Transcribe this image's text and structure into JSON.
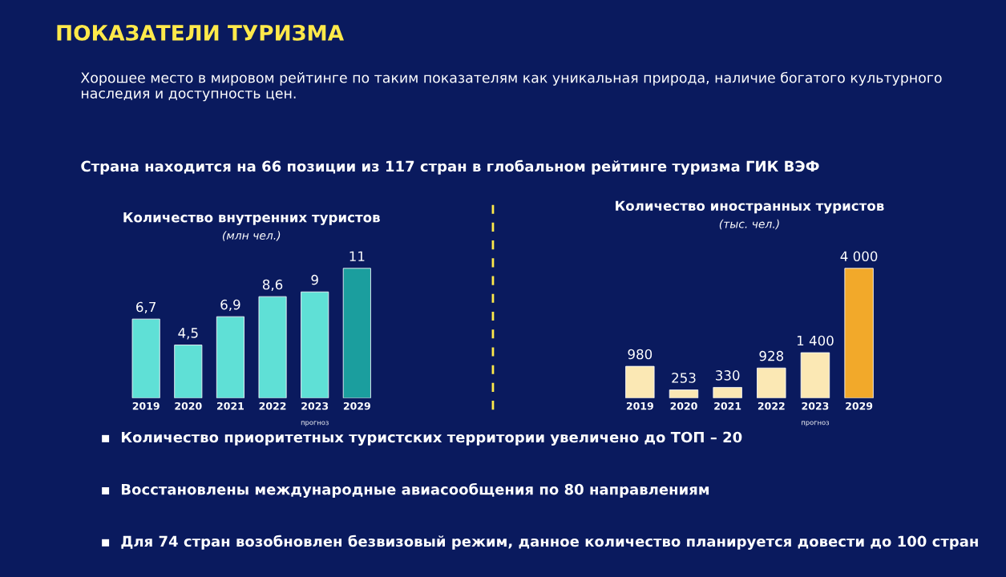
{
  "chart_data": [
    {
      "type": "bar",
      "title": "Количество внутренних туристов",
      "subtitle": "(млн чел.)",
      "categories": [
        "2019",
        "2020",
        "2021",
        "2022",
        "2023",
        "2029"
      ],
      "values": [
        6.7,
        4.5,
        6.9,
        8.6,
        9,
        11
      ],
      "colors": [
        "#5fe0d6",
        "#5fe0d6",
        "#5fe0d6",
        "#5fe0d6",
        "#5fe0d6",
        "#1b9e9e"
      ],
      "value_labels": [
        "6,7",
        "4,5",
        "6,9",
        "8,6",
        "9",
        "11"
      ],
      "annotations": [
        "ПОКАЗАТЕЛИ ТУРИЗМА",
        "Хорошее место в мировом рейтинге по таким показателям как уникальная природа, наличие богатого культурного наследия и доступность цен.",
        "Страна находится на 66 позиции из 117 стран в глобальном рейтинге туризма ГИК ВЭФ",
        "▪  Количество приоритетных туристских территории увеличено до ТОП – 20",
        "▪  Восстановлены международные авиасообщения по 80 направлениям",
        "▪  Для 74 стран возобновлен безвизовый режим, данное количество планируется довести до 100 стран",
        "прогноз"
      ]
    },
    {
      "type": "bar",
      "title": "Количество иностранных туристов",
      "subtitle": "(тыс. чел.)",
      "categories": [
        "2019",
        "2020",
        "2021",
        "2022",
        "2023",
        "2029"
      ],
      "values": [
        980,
        253,
        330,
        928,
        1400,
        4000
      ],
      "colors": [
        "#fbe8b4",
        "#fbe8b4",
        "#fbe8b4",
        "#fbe8b4",
        "#fbe8b4",
        "#f2a92a"
      ],
      "value_labels": [
        "980",
        "253",
        "330",
        "928",
        "1 400",
        "4 000"
      ],
      "annotations": [
        "прогноз"
      ]
    }
  ]
}
